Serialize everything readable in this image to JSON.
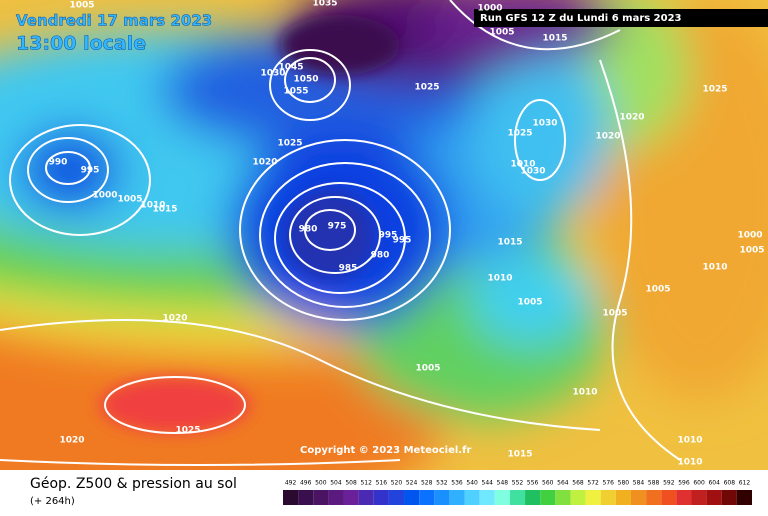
{
  "header": {
    "title": "Vendredi 17 mars 2023",
    "time": "13:00 locale",
    "run": "Run GFS 12 Z du Lundi 6 mars 2023"
  },
  "map": {
    "copyright": "Copyright © 2023 Meteociel.fr",
    "isobar_labels": [
      "1005",
      "1035",
      "1000",
      "1005",
      "1015",
      "990",
      "995",
      "1000",
      "1005",
      "1010",
      "1015",
      "1020",
      "1025",
      "1030",
      "1045",
      "1050",
      "1055",
      "1025",
      "1025",
      "1030",
      "1020",
      "1020",
      "1025",
      "1010",
      "1030",
      "975",
      "980",
      "985",
      "980",
      "995",
      "995",
      "1015",
      "1010",
      "1005",
      "1005",
      "1005",
      "1010",
      "1005",
      "1020",
      "1025",
      "1020",
      "1015",
      "1010",
      "1010",
      "1000",
      "1005",
      "1010"
    ]
  },
  "footer": {
    "product": "Géop. Z500 & pression au sol",
    "lead": "(+ 264h)"
  },
  "colorbar": {
    "labels": [
      492,
      496,
      500,
      504,
      508,
      512,
      516,
      520,
      524,
      528,
      532,
      536,
      540,
      544,
      548,
      552,
      556,
      560,
      564,
      568,
      572,
      576,
      580,
      584,
      588,
      592,
      596,
      600,
      604,
      608,
      612
    ],
    "colors": [
      "#2a0a2e",
      "#3a0f4d",
      "#4b1463",
      "#5a1a7e",
      "#6a2099",
      "#4b2ab3",
      "#3333cc",
      "#2244dd",
      "#0055ee",
      "#0a72ff",
      "#1a90ff",
      "#30b0ff",
      "#50d0ff",
      "#70e8ff",
      "#80ffe0",
      "#40e0a0",
      "#20c060",
      "#40d040",
      "#80e040",
      "#c0f040",
      "#f0f040",
      "#f0d030",
      "#f0b020",
      "#f09020",
      "#f07020",
      "#f05020",
      "#e03030",
      "#c02020",
      "#a01010",
      "#700808",
      "#300000"
    ]
  }
}
